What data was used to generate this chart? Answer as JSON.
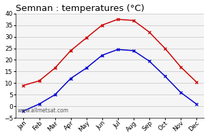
{
  "title": "Semnan : temperatures (°C)",
  "months": [
    "Jan",
    "Feb",
    "Mar",
    "Apr",
    "May",
    "Jun",
    "Jul",
    "Aug",
    "Sep",
    "Oct",
    "Nov",
    "Dec"
  ],
  "max_temps": [
    9,
    11,
    16.5,
    24,
    29.5,
    35,
    37.5,
    37,
    32,
    25,
    17,
    10.5
  ],
  "min_temps": [
    -2,
    1,
    5,
    12,
    16.5,
    22,
    24.5,
    24,
    19.5,
    13,
    6,
    1
  ],
  "max_color": "#cc0000",
  "min_color": "#0000cc",
  "ylim": [
    -5,
    40
  ],
  "yticks": [
    -5,
    0,
    5,
    10,
    15,
    20,
    25,
    30,
    35,
    40
  ],
  "bg_color": "#ffffff",
  "plot_bg_color": "#f5f5f5",
  "grid_color": "#cccccc",
  "watermark": "www.allmetsat.com",
  "title_fontsize": 9.5,
  "tick_fontsize": 6.5,
  "watermark_fontsize": 5.5,
  "line_width": 1.1,
  "marker_size": 3.5
}
